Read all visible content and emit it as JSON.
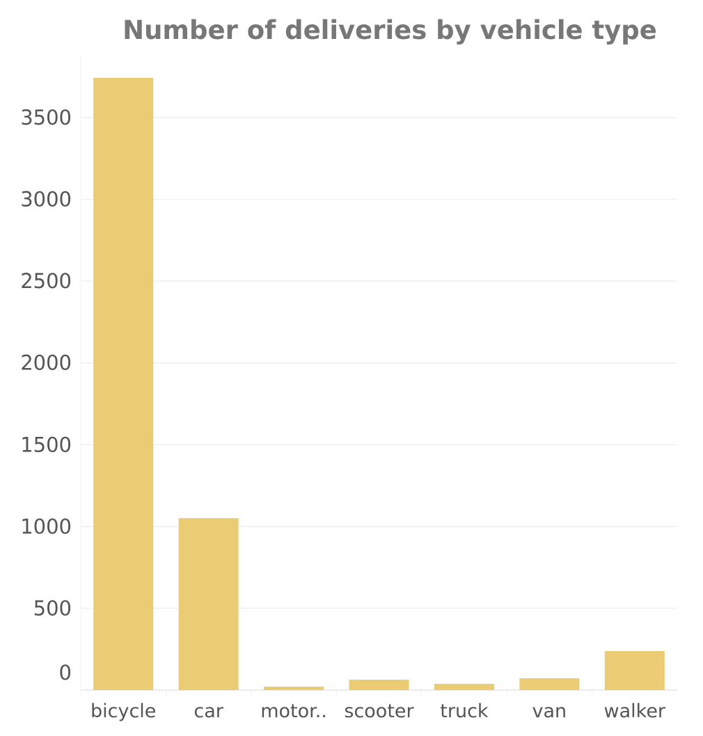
{
  "chart_data": {
    "type": "bar",
    "title": "Number of deliveries by vehicle type",
    "xlabel": "",
    "ylabel": "",
    "categories": [
      "bicycle",
      "car",
      "motor..",
      "scooter",
      "truck",
      "van",
      "walker"
    ],
    "values": [
      3743,
      1051,
      21,
      64,
      38,
      72,
      238
    ],
    "ylim": [
      0,
      3750
    ],
    "yticks": [
      0,
      500,
      1000,
      1500,
      2000,
      2500,
      3000,
      3500
    ],
    "grid": true,
    "bar_color": "#EBCB74"
  }
}
